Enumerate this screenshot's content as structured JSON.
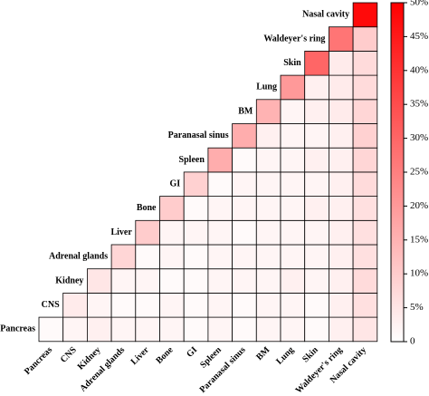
{
  "chart_data": {
    "type": "triangular-heatmap",
    "categories": [
      "Pancreas",
      "CNS",
      "Kidney",
      "Adrenal glands",
      "Liver",
      "Bone",
      "GI",
      "Spleen",
      "Paranasal sinus",
      "BM",
      "Lung",
      "Skin",
      "Waldeyer's ring",
      "Nasal cavity"
    ],
    "matrix": [
      [
        1,
        2,
        3,
        2,
        2,
        2,
        1,
        2,
        1,
        2,
        2,
        1,
        3,
        5
      ],
      [
        4,
        2,
        1,
        1,
        2,
        1,
        2,
        1,
        2,
        2,
        1,
        3,
        6
      ],
      [
        5,
        2,
        2,
        1,
        1,
        2,
        2,
        2,
        3,
        2,
        3,
        7
      ],
      [
        8,
        1,
        2,
        1,
        2,
        2,
        2,
        2,
        2,
        3,
        6
      ],
      [
        10,
        2,
        2,
        2,
        1,
        2,
        2,
        2,
        3,
        6
      ],
      [
        10,
        1,
        2,
        2,
        2,
        2,
        3,
        3,
        6
      ],
      [
        9,
        1,
        2,
        2,
        2,
        2,
        3,
        7
      ],
      [
        16,
        1,
        2,
        2,
        3,
        3,
        8
      ],
      [
        16,
        3,
        2,
        2,
        3,
        9
      ],
      [
        15,
        2,
        3,
        4,
        8
      ],
      [
        20,
        3,
        4,
        7
      ],
      [
        30,
        4,
        7
      ],
      [
        27,
        10
      ],
      [
        48
      ]
    ],
    "color_low": "#ffffff",
    "color_high": "#ff0000",
    "colorbar_lim": [
      0,
      50
    ],
    "colorbar_ticks": [
      0,
      {
        "value": 5,
        "label": "5%"
      },
      {
        "value": 10,
        "label": "10%"
      },
      {
        "value": 15,
        "label": "15%"
      },
      {
        "value": 20,
        "label": "20%"
      },
      {
        "value": 25,
        "label": "25%"
      },
      {
        "value": 30,
        "label": "30%"
      },
      {
        "value": 35,
        "label": "35%"
      },
      {
        "value": 40,
        "label": "40%"
      },
      {
        "value": 45,
        "label": "45%"
      },
      {
        "value": 50,
        "label": "50%"
      }
    ]
  }
}
